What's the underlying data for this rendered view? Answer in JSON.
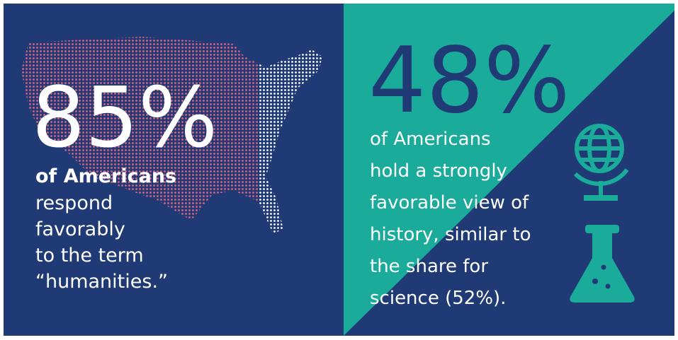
{
  "left": {
    "stat": "85%",
    "lead": "of Americans",
    "lines": [
      "respond",
      "favorably",
      "to the term",
      "“humanities.”"
    ]
  },
  "right": {
    "stat": "48%",
    "lines": [
      "of Americans",
      "hold a strongly",
      "favorable view of",
      "history, similar to",
      "the share for",
      "science (52%)."
    ]
  }
}
